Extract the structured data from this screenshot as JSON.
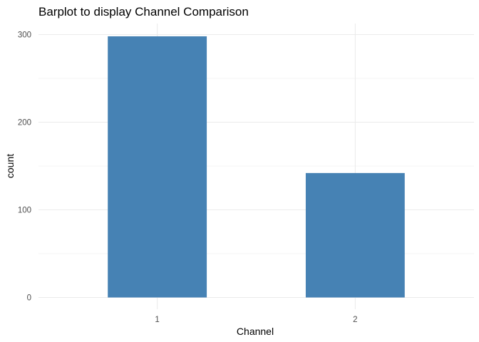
{
  "chart_data": {
    "type": "bar",
    "title": "Barplot to display Channel Comparison",
    "xlabel": "Channel",
    "ylabel": "count",
    "categories": [
      "1",
      "2"
    ],
    "values": [
      298,
      142
    ],
    "ylim": [
      0,
      310
    ],
    "yticks": [
      0,
      100,
      200,
      300
    ],
    "ytick_labels": [
      "0",
      "100",
      "200",
      "300"
    ],
    "bar_color": "#4682B4",
    "grid": true,
    "legend": "none"
  }
}
